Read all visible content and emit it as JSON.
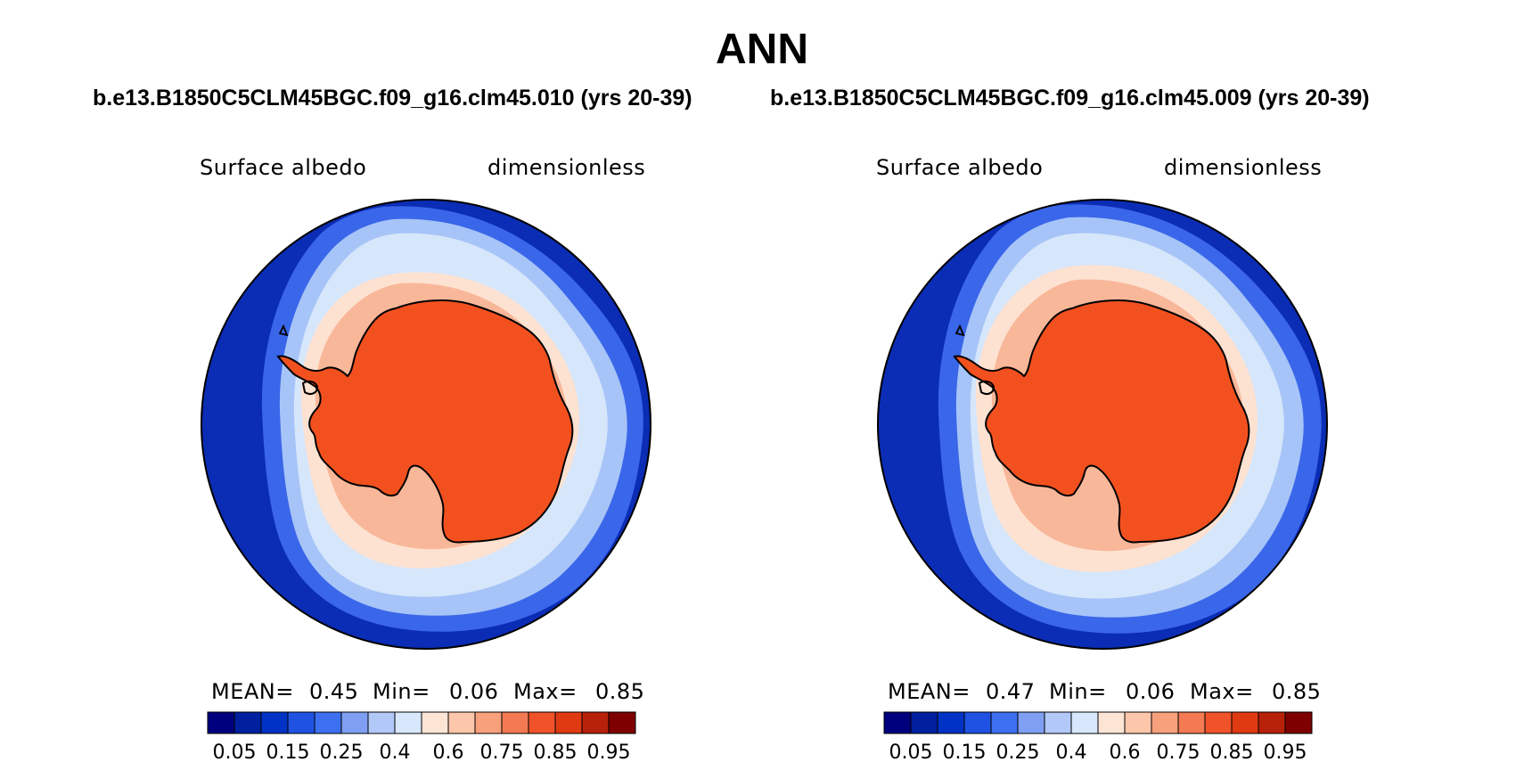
{
  "title": "ANN",
  "cases": [
    "b.e13.B1850C5CLM45BGC.f09_g16.clm45.010 (yrs 20-39)",
    "b.e13.B1850C5CLM45BGC.f09_g16.clm45.009 (yrs 20-39)"
  ],
  "panels": [
    {
      "variable": "Surface albedo",
      "units": "dimensionless",
      "stats": {
        "mean_label": "MEAN=",
        "mean": "0.45",
        "min_label": "Min=",
        "min": "0.06",
        "max_label": "Max=",
        "max": "0.85"
      }
    },
    {
      "variable": "Surface albedo",
      "units": "dimensionless",
      "stats": {
        "mean_label": "MEAN=",
        "mean": "0.47",
        "min_label": "Min=",
        "min": "0.06",
        "max_label": "Max=",
        "max": "0.85"
      }
    }
  ],
  "colorbar": {
    "colors": [
      "#00007f",
      "#0020a0",
      "#0033c5",
      "#1f52e3",
      "#3d70f0",
      "#7f9ff2",
      "#b1c8f8",
      "#d8e7fb",
      "#fde5d6",
      "#fbc6aa",
      "#f7a07c",
      "#f37a52",
      "#f0532a",
      "#df3a12",
      "#b7210a",
      "#7f0000"
    ],
    "tick_labels": [
      "0.05",
      "0.15",
      "0.25",
      "0.4",
      "0.6",
      "0.75",
      "0.85",
      "0.95"
    ]
  },
  "colors": {
    "ocean": "#0b2db5",
    "ice_edge": "#3a66ea",
    "marginal_ice": "#a6c4f7",
    "pack_ice": "#d6e6fb",
    "near_coast": "#fde2d2",
    "coastal": "#f9b799",
    "continent": "#f2511f"
  }
}
